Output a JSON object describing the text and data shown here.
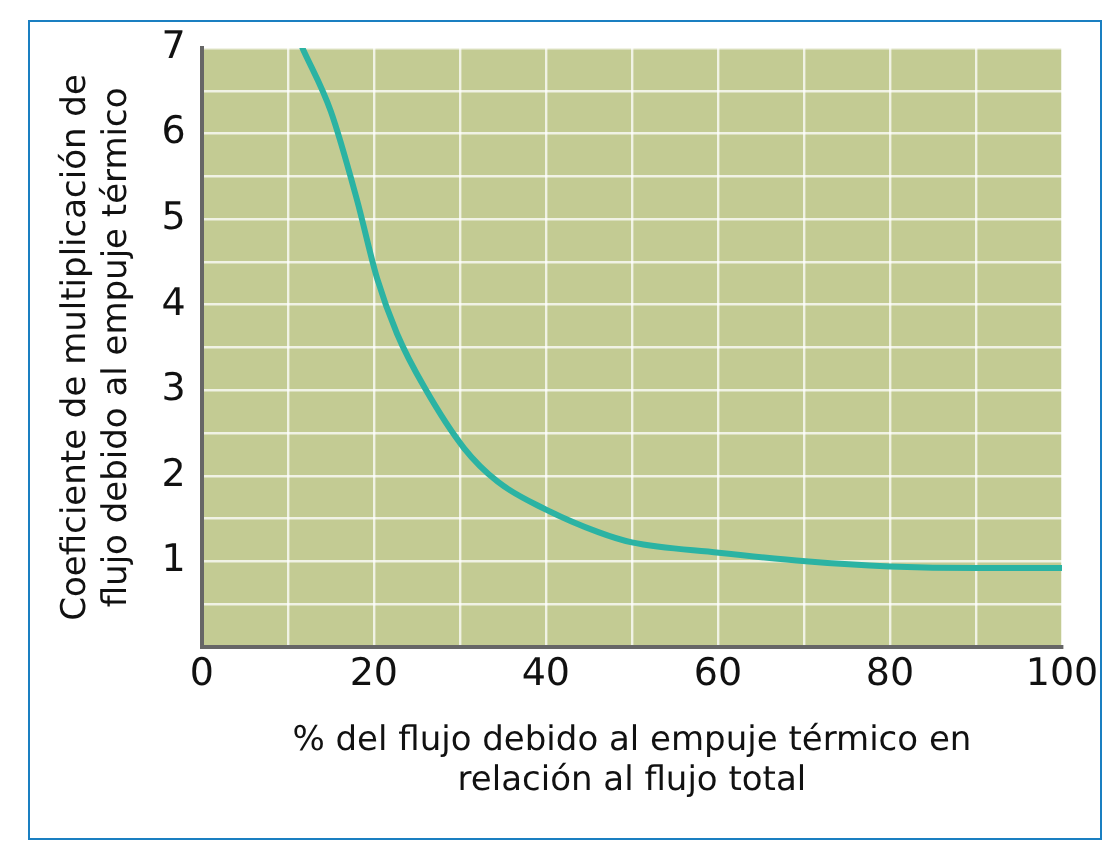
{
  "chart_data": {
    "type": "line",
    "xlabel": "% del flujo debido al empuje térmico en relación al flujo total",
    "ylabel": "Coeficiente de multiplicación de flujo debido al empuje térmico",
    "series": [
      {
        "color": "#2bb3a3",
        "x": [
          11.7,
          15,
          18,
          20.4,
          22.7,
          25.9,
          30.5,
          34.4,
          39.9,
          46.1,
          50,
          60.1,
          70.2,
          80,
          90.1,
          100
        ],
        "values": [
          7.0,
          6.26,
          5.24,
          4.3,
          3.66,
          3.03,
          2.32,
          1.93,
          1.61,
          1.34,
          1.22,
          1.1,
          1.0,
          0.94,
          0.92,
          0.92
        ]
      }
    ],
    "xlim": [
      0,
      100
    ],
    "ylim": [
      0,
      7
    ],
    "xticks": [
      0,
      {
        "value": 10,
        "label": null
      },
      20,
      {
        "value": 30,
        "label": null
      },
      40,
      {
        "value": 50,
        "label": null
      },
      60,
      {
        "value": 70,
        "label": null
      },
      80,
      {
        "value": 90,
        "label": null
      },
      100
    ],
    "yticks": [
      {
        "value": 0,
        "label": null
      },
      {
        "value": 0.5,
        "label": null
      },
      1,
      {
        "value": 1.5,
        "label": null
      },
      2,
      {
        "value": 2.5,
        "label": null
      },
      3,
      {
        "value": 3.5,
        "label": null
      },
      4,
      {
        "value": 4.5,
        "label": null
      },
      5,
      {
        "value": 5.5,
        "label": null
      },
      6,
      {
        "value": 6.5,
        "label": null
      },
      7
    ],
    "grid": true,
    "legend": false,
    "marker": "none",
    "line_style": "solid"
  }
}
